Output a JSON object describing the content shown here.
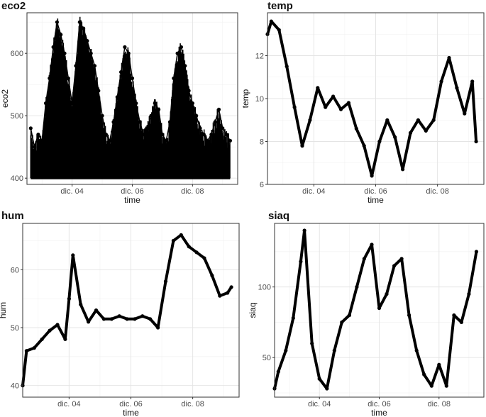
{
  "chart_data": [
    {
      "type": "line",
      "title": "eco2",
      "xlabel": "time",
      "ylabel": "eco2",
      "x_range": [
        "2022-12-02T12:00",
        "2022-12-09T12:00"
      ],
      "ylim": [
        390,
        665
      ],
      "x_ticks": [
        "dic. 04",
        "dic. 06",
        "dic. 08"
      ],
      "x_tick_dates": [
        "2022-12-04",
        "2022-12-06",
        "2022-12-08"
      ],
      "y_ticks": [
        400,
        500,
        600
      ],
      "series": [
        {
          "x": [
            "2022-12-02T15:00",
            "2022-12-02T18:00",
            "2022-12-02T21:00",
            "2022-12-03T00:00",
            "2022-12-03T03:00",
            "2022-12-03T06:00",
            "2022-12-03T09:00",
            "2022-12-03T12:00",
            "2022-12-03T15:00",
            "2022-12-03T18:00",
            "2022-12-03T21:00",
            "2022-12-04T00:00",
            "2022-12-04T03:00",
            "2022-12-04T06:00",
            "2022-12-04T09:00",
            "2022-12-04T12:00",
            "2022-12-04T15:00",
            "2022-12-04T18:00",
            "2022-12-04T21:00",
            "2022-12-05T00:00",
            "2022-12-05T03:00",
            "2022-12-05T06:00",
            "2022-12-05T09:00",
            "2022-12-05T12:00",
            "2022-12-05T15:00",
            "2022-12-05T18:00",
            "2022-12-05T21:00",
            "2022-12-06T00:00",
            "2022-12-06T03:00",
            "2022-12-06T06:00",
            "2022-12-06T09:00",
            "2022-12-06T12:00",
            "2022-12-06T15:00",
            "2022-12-06T18:00",
            "2022-12-06T21:00",
            "2022-12-07T00:00",
            "2022-12-07T03:00",
            "2022-12-07T06:00",
            "2022-12-07T09:00",
            "2022-12-07T12:00",
            "2022-12-07T15:00",
            "2022-12-07T18:00",
            "2022-12-07T21:00",
            "2022-12-08T00:00",
            "2022-12-08T03:00",
            "2022-12-08T06:00",
            "2022-12-08T09:00",
            "2022-12-08T12:00",
            "2022-12-08T15:00",
            "2022-12-08T18:00",
            "2022-12-08T21:00",
            "2022-12-09T00:00",
            "2022-12-09T03:00",
            "2022-12-09T06:00"
          ],
          "y": [
            480,
            450,
            470,
            460,
            520,
            560,
            610,
            650,
            630,
            600,
            560,
            520,
            580,
            650,
            640,
            620,
            600,
            580,
            540,
            500,
            470,
            460,
            490,
            530,
            570,
            610,
            600,
            560,
            520,
            490,
            470,
            480,
            500,
            520,
            510,
            470,
            460,
            490,
            560,
            600,
            610,
            580,
            540,
            520,
            500,
            480,
            470,
            460,
            470,
            490,
            510,
            480,
            470,
            460
          ]
        }
      ]
    },
    {
      "type": "line",
      "title": "temp",
      "xlabel": "time",
      "ylabel": "temp",
      "x_range": [
        "2022-12-02T12:00",
        "2022-12-09T12:00"
      ],
      "ylim": [
        6,
        14
      ],
      "x_ticks": [
        "dic. 04",
        "dic. 06",
        "dic. 08"
      ],
      "x_tick_dates": [
        "2022-12-04",
        "2022-12-06",
        "2022-12-08"
      ],
      "y_ticks": [
        6,
        8,
        10,
        12
      ],
      "series": [
        {
          "x": [
            "2022-12-02T12:00",
            "2022-12-02T15:00",
            "2022-12-02T21:00",
            "2022-12-03T03:00",
            "2022-12-03T09:00",
            "2022-12-03T15:00",
            "2022-12-03T21:00",
            "2022-12-04T03:00",
            "2022-12-04T09:00",
            "2022-12-04T15:00",
            "2022-12-04T21:00",
            "2022-12-05T03:00",
            "2022-12-05T09:00",
            "2022-12-05T15:00",
            "2022-12-05T21:00",
            "2022-12-06T03:00",
            "2022-12-06T09:00",
            "2022-12-06T15:00",
            "2022-12-06T21:00",
            "2022-12-07T03:00",
            "2022-12-07T09:00",
            "2022-12-07T15:00",
            "2022-12-07T21:00",
            "2022-12-08T03:00",
            "2022-12-08T09:00",
            "2022-12-08T15:00",
            "2022-12-08T21:00",
            "2022-12-09T03:00",
            "2022-12-09T06:00"
          ],
          "y": [
            13.0,
            13.6,
            13.2,
            11.5,
            9.6,
            7.8,
            9.0,
            10.5,
            9.6,
            10.1,
            9.5,
            9.8,
            8.6,
            7.8,
            6.4,
            8.0,
            9.0,
            8.2,
            6.7,
            8.4,
            9.0,
            8.5,
            9.0,
            10.8,
            11.9,
            10.5,
            9.3,
            10.8,
            8.0
          ]
        }
      ]
    },
    {
      "type": "line",
      "title": "hum",
      "xlabel": "time",
      "ylabel": "hum",
      "x_range": [
        "2022-12-02T12:00",
        "2022-12-09T12:00"
      ],
      "ylim": [
        38,
        68
      ],
      "x_ticks": [
        "dic. 04",
        "dic. 06",
        "dic. 08"
      ],
      "x_tick_dates": [
        "2022-12-04",
        "2022-12-06",
        "2022-12-08"
      ],
      "y_ticks": [
        40,
        50,
        60
      ],
      "series": [
        {
          "x": [
            "2022-12-02T12:00",
            "2022-12-02T15:00",
            "2022-12-02T21:00",
            "2022-12-03T03:00",
            "2022-12-03T09:00",
            "2022-12-03T15:00",
            "2022-12-03T21:00",
            "2022-12-04T00:00",
            "2022-12-04T03:00",
            "2022-12-04T09:00",
            "2022-12-04T15:00",
            "2022-12-04T21:00",
            "2022-12-05T03:00",
            "2022-12-05T09:00",
            "2022-12-05T15:00",
            "2022-12-05T21:00",
            "2022-12-06T03:00",
            "2022-12-06T09:00",
            "2022-12-06T15:00",
            "2022-12-06T21:00",
            "2022-12-07T03:00",
            "2022-12-07T09:00",
            "2022-12-07T15:00",
            "2022-12-07T21:00",
            "2022-12-08T03:00",
            "2022-12-08T09:00",
            "2022-12-08T15:00",
            "2022-12-08T21:00",
            "2022-12-09T03:00",
            "2022-12-09T06:00"
          ],
          "y": [
            40.0,
            46.0,
            46.5,
            48.0,
            49.5,
            50.5,
            48.0,
            55.0,
            62.5,
            54.0,
            51.0,
            53.0,
            51.5,
            51.5,
            52.0,
            51.5,
            51.5,
            52.0,
            51.5,
            50.0,
            58.0,
            65.0,
            66.0,
            64.0,
            63.0,
            62.0,
            59.0,
            55.5,
            56.0,
            57.0
          ]
        }
      ]
    },
    {
      "type": "line",
      "title": "siaq",
      "xlabel": "time",
      "ylabel": "siaq",
      "x_range": [
        "2022-12-02T12:00",
        "2022-12-09T12:00"
      ],
      "ylim": [
        22,
        145
      ],
      "x_ticks": [
        "dic. 04",
        "dic. 06",
        "dic. 08"
      ],
      "x_tick_dates": [
        "2022-12-04",
        "2022-12-06",
        "2022-12-08"
      ],
      "y_ticks": [
        50,
        100
      ],
      "series": [
        {
          "x": [
            "2022-12-02T12:00",
            "2022-12-02T15:00",
            "2022-12-02T21:00",
            "2022-12-03T03:00",
            "2022-12-03T09:00",
            "2022-12-03T12:00",
            "2022-12-03T18:00",
            "2022-12-04T00:00",
            "2022-12-04T06:00",
            "2022-12-04T12:00",
            "2022-12-04T18:00",
            "2022-12-05T00:00",
            "2022-12-05T06:00",
            "2022-12-05T12:00",
            "2022-12-05T18:00",
            "2022-12-06T00:00",
            "2022-12-06T06:00",
            "2022-12-06T12:00",
            "2022-12-06T18:00",
            "2022-12-07T00:00",
            "2022-12-07T06:00",
            "2022-12-07T12:00",
            "2022-12-07T18:00",
            "2022-12-08T00:00",
            "2022-12-08T06:00",
            "2022-12-08T12:00",
            "2022-12-08T18:00",
            "2022-12-09T00:00",
            "2022-12-09T06:00"
          ],
          "y": [
            28,
            40,
            55,
            78,
            118,
            140,
            60,
            35,
            28,
            55,
            75,
            80,
            100,
            120,
            130,
            85,
            95,
            115,
            120,
            80,
            55,
            38,
            30,
            45,
            30,
            80,
            75,
            95,
            125
          ]
        }
      ]
    }
  ]
}
